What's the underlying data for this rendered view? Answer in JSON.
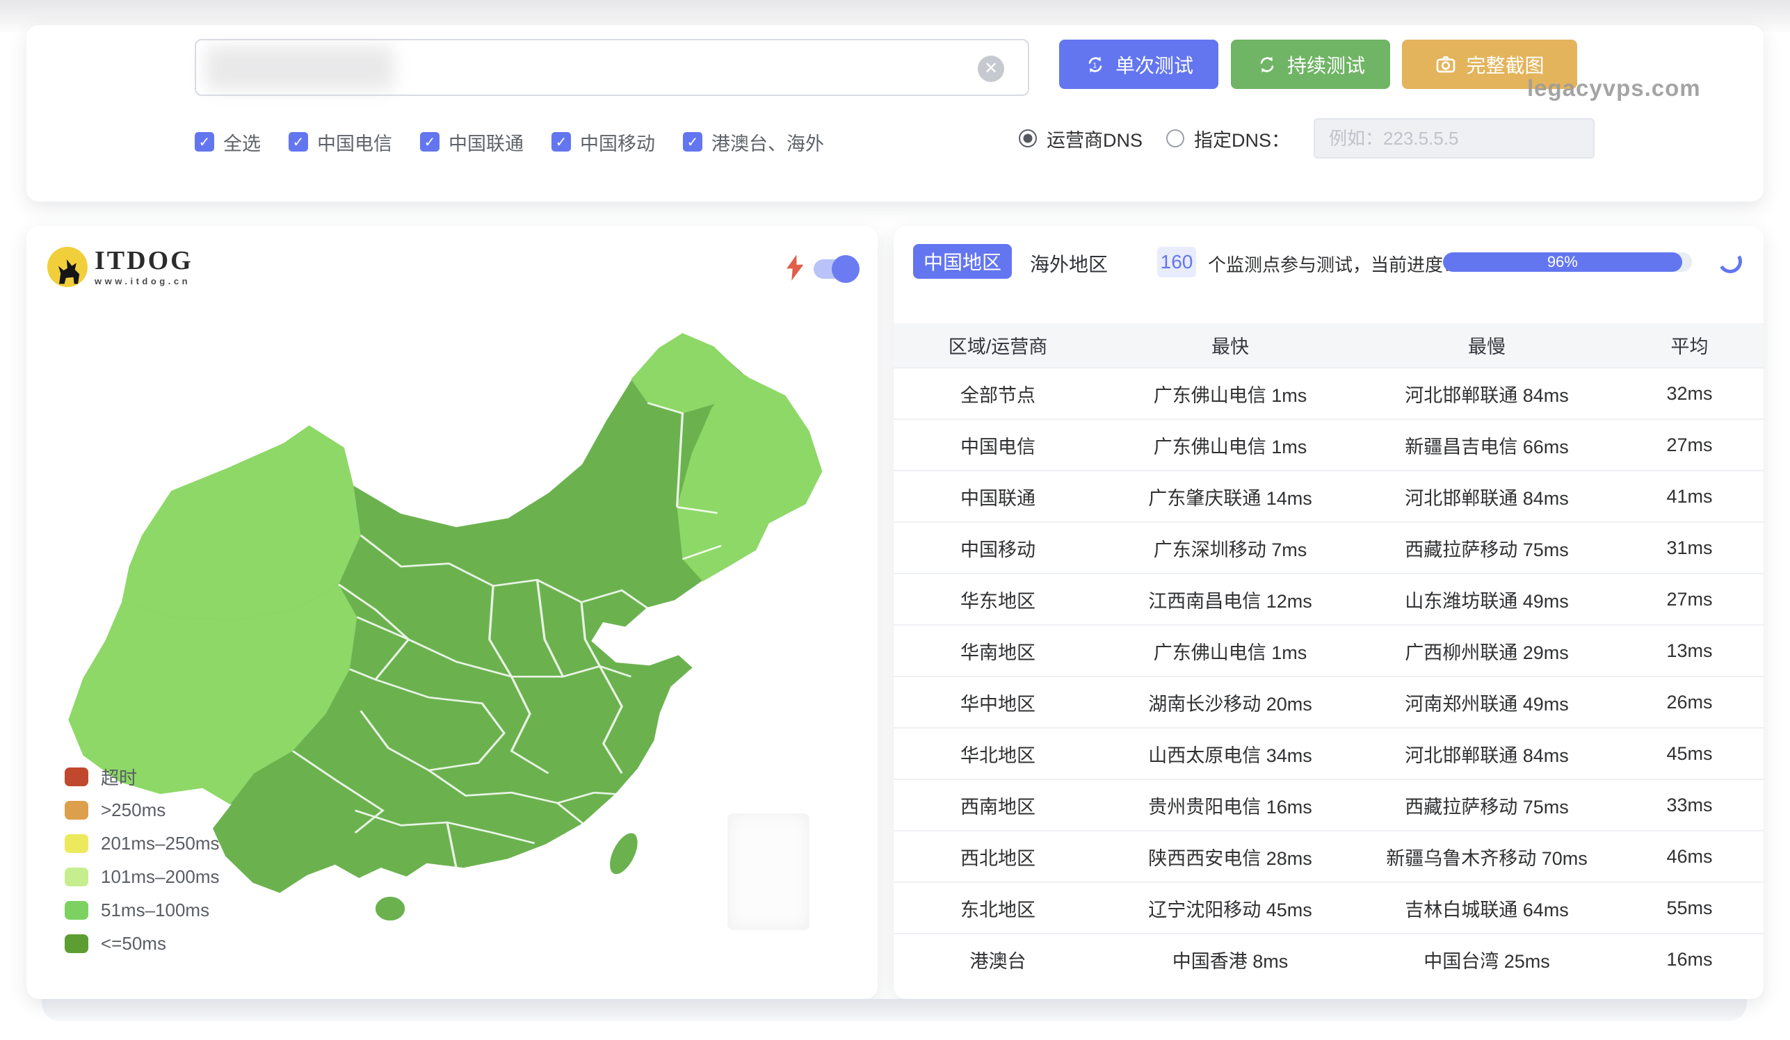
{
  "toolbar": {
    "search": {
      "value": "",
      "note": "query text blurred in screenshot",
      "clear_icon": "x"
    },
    "buttons": [
      {
        "label": "单次测试",
        "color": "#6376F0",
        "icon": "refresh-once-icon"
      },
      {
        "label": "持续测试",
        "color": "#70B465",
        "icon": "refresh-loop-icon"
      },
      {
        "label": "完整截图",
        "color": "#E3B45C",
        "icon": "camera-icon"
      }
    ],
    "watermark": "legacyvps.com"
  },
  "filters": {
    "accent_color": "#6376F0",
    "checkboxes": [
      {
        "label": "全选",
        "checked": true
      },
      {
        "label": "中国电信",
        "checked": true
      },
      {
        "label": "中国联通",
        "checked": true
      },
      {
        "label": "中国移动",
        "checked": true
      },
      {
        "label": "港澳台、海外",
        "checked": true
      }
    ]
  },
  "dns": {
    "radios": [
      {
        "label": "运营商DNS",
        "selected": true
      },
      {
        "label": "指定DNS：",
        "selected": false
      }
    ],
    "input_placeholder": "例如：223.5.5.5"
  },
  "map_card": {
    "logo": {
      "title": "ITDOG",
      "subtitle": "www.itdog.cn"
    },
    "speed_toggle_on": true,
    "map_colors": {
      "le50ms": "#6BB24F",
      "51to100ms": "#8DD867"
    },
    "legend": [
      {
        "label": "超时",
        "color": "#C0482D"
      },
      {
        "label": ">250ms",
        "color": "#DC9F4B"
      },
      {
        "label": "201ms–250ms",
        "color": "#EDE95D"
      },
      {
        "label": "101ms–200ms",
        "color": "#C6EE8E"
      },
      {
        "label": "51ms–100ms",
        "color": "#7CD260"
      },
      {
        "label": "<=50ms",
        "color": "#5D9E33"
      }
    ]
  },
  "results": {
    "tabs": [
      {
        "label": "中国地区",
        "active": true
      },
      {
        "label": "海外地区",
        "active": false
      }
    ],
    "monitor_count": "160",
    "progress_label_suffix": "个监测点参与测试，当前进度：",
    "progress_percent": "96%",
    "progress_value": 96,
    "table": {
      "headers": [
        "区域/运营商",
        "最快",
        "最慢",
        "平均"
      ],
      "rows": [
        [
          "全部节点",
          "广东佛山电信 1ms",
          "河北邯郸联通 84ms",
          "32ms"
        ],
        [
          "中国电信",
          "广东佛山电信 1ms",
          "新疆昌吉电信 66ms",
          "27ms"
        ],
        [
          "中国联通",
          "广东肇庆联通 14ms",
          "河北邯郸联通 84ms",
          "41ms"
        ],
        [
          "中国移动",
          "广东深圳移动 7ms",
          "西藏拉萨移动 75ms",
          "31ms"
        ],
        [
          "华东地区",
          "江西南昌电信 12ms",
          "山东潍坊联通 49ms",
          "27ms"
        ],
        [
          "华南地区",
          "广东佛山电信 1ms",
          "广西柳州联通 29ms",
          "13ms"
        ],
        [
          "华中地区",
          "湖南长沙移动 20ms",
          "河南郑州联通 49ms",
          "26ms"
        ],
        [
          "华北地区",
          "山西太原电信 34ms",
          "河北邯郸联通 84ms",
          "45ms"
        ],
        [
          "西南地区",
          "贵州贵阳电信 16ms",
          "西藏拉萨移动 75ms",
          "33ms"
        ],
        [
          "西北地区",
          "陕西西安电信 28ms",
          "新疆乌鲁木齐移动 70ms",
          "46ms"
        ],
        [
          "东北地区",
          "辽宁沈阳移动 45ms",
          "吉林白城联通 64ms",
          "55ms"
        ],
        [
          "港澳台",
          "中国香港 8ms",
          "中国台湾 25ms",
          "16ms"
        ]
      ]
    }
  }
}
